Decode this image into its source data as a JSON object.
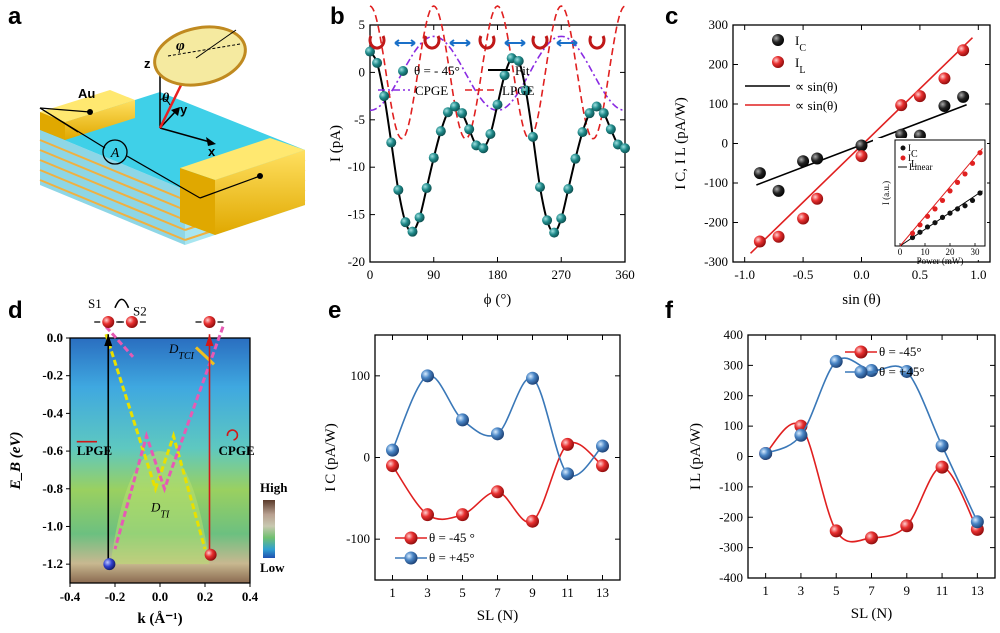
{
  "panels": {
    "a": "a",
    "b": "b",
    "c": "c",
    "d": "d",
    "e": "e",
    "f": "f"
  },
  "colors": {
    "teal": "#1f8a8a",
    "red": "#e02020",
    "blue": "#3a78b8",
    "purple": "#8a2be2",
    "yellow": "#e8e000",
    "magenta": "#e65ab4",
    "gold": "#f0c020",
    "cyan": "#33ccdd"
  },
  "diagram_a": {
    "labels": [
      "Au",
      "φ",
      "θ",
      "z",
      "y",
      "x",
      "A"
    ]
  },
  "chart_b": {
    "type": "line",
    "xlabel": "ϕ (°)",
    "ylabel": "I (pA)",
    "xlim": [
      0,
      360
    ],
    "ylim": [
      -20,
      5
    ],
    "xticks": [
      "0",
      "90",
      "180",
      "270",
      "360"
    ],
    "yticks": [
      "5",
      "0",
      "-5",
      "-10",
      "-15",
      "-20"
    ],
    "legend": {
      "data": "θ = - 45°",
      "fit": "Fit",
      "cpge": "CPGE",
      "lpge": "LPGE"
    },
    "data_phi": [
      0,
      10,
      20,
      30,
      40,
      50,
      60,
      70,
      80,
      90,
      100,
      110,
      120,
      130,
      140,
      150,
      160,
      170,
      180,
      190,
      200,
      210,
      220,
      230,
      240,
      250,
      260,
      270,
      280,
      290,
      300,
      310,
      320,
      330,
      340,
      350,
      360
    ],
    "data_I": [
      2.2,
      1.0,
      -2.5,
      -7.4,
      -12.4,
      -15.8,
      -16.8,
      -15.3,
      -12.2,
      -9.0,
      -6.2,
      -4.2,
      -3.6,
      -4.3,
      -6.0,
      -7.7,
      -8.0,
      -6.5,
      -3.4,
      -0.3,
      1.5,
      1.2,
      -1.9,
      -6.8,
      -12.1,
      -15.6,
      -16.9,
      -15.4,
      -12.3,
      -9.1,
      -6.3,
      -4.3,
      -3.6,
      -4.3,
      -6.0,
      -7.6,
      -8.0
    ]
  },
  "chart_c": {
    "type": "scatter",
    "xlabel": "sin (θ)",
    "ylabel": "I C, I L (pA/W)",
    "xlim": [
      -1.0,
      1.0
    ],
    "ylim": [
      -300,
      300
    ],
    "xticks": [
      "-1.0",
      "-0.5",
      "0.0",
      "0.5",
      "1.0"
    ],
    "yticks": [
      "300",
      "200",
      "100",
      "0",
      "-100",
      "-200",
      "-300"
    ],
    "legend": {
      "ic": "I",
      "ic_sub": "C",
      "il": "I",
      "il_sub": "L",
      "fit1": "∝ sin(θ)",
      "fit2": "∝ sin(θ)"
    },
    "ic_x": [
      -0.87,
      -0.71,
      -0.5,
      -0.38,
      0.0,
      0.34,
      0.5,
      0.71,
      0.87
    ],
    "ic_y": [
      -75,
      -120,
      -45,
      -38,
      -5,
      22,
      20,
      95,
      118
    ],
    "il_x": [
      -0.87,
      -0.71,
      -0.5,
      -0.38,
      0.0,
      0.34,
      0.5,
      0.71,
      0.87
    ],
    "il_y": [
      -248,
      -236,
      -190,
      -140,
      -32,
      97,
      120,
      165,
      236
    ],
    "inset": {
      "xlabel": "Power (mW)",
      "ylabel": "I (a.u.)",
      "xticks": [
        "0",
        "10",
        "20",
        "30"
      ],
      "legend_ic": "I",
      "legend_ic_sub": "C",
      "legend_il": "I",
      "legend_il_sub": "L",
      "legend_linear": "Linear",
      "ic_x": [
        5,
        8,
        11,
        14,
        17,
        20,
        23,
        26,
        29,
        32
      ],
      "ic_y": [
        0.08,
        0.13,
        0.18,
        0.22,
        0.27,
        0.31,
        0.35,
        0.38,
        0.43,
        0.5
      ],
      "il_x": [
        5,
        8,
        11,
        14,
        17,
        20,
        23,
        26,
        29,
        32
      ],
      "il_y": [
        0.12,
        0.2,
        0.28,
        0.35,
        0.43,
        0.52,
        0.6,
        0.68,
        0.78,
        0.88
      ]
    }
  },
  "chart_d": {
    "xlabel": "k (Å⁻¹)",
    "ylabel": "E_B (eV)",
    "xticks": [
      "-0.4",
      "-0.2",
      "0.0",
      "0.2",
      "0.4"
    ],
    "yticks": [
      "0.0",
      "-0.2",
      "-0.4",
      "-0.6",
      "-0.8",
      "-1.0",
      "-1.2"
    ],
    "labels": {
      "s1": "S1",
      "s2": "S2",
      "dtci": "D",
      "dtci_sub": "TCI",
      "dti": "D",
      "dti_sub": "TI",
      "lpge": "LPGE",
      "cpge": "CPGE",
      "high": "High",
      "low": "Low"
    }
  },
  "chart_e": {
    "type": "line",
    "xlabel": "SL (N)",
    "ylabel": "I C (pA/W)",
    "xticks": [
      "1",
      "3",
      "5",
      "7",
      "9",
      "11",
      "13"
    ],
    "yticks": [
      "100",
      "0",
      "-100"
    ],
    "x": [
      1,
      3,
      5,
      7,
      9,
      11,
      13
    ],
    "series": [
      {
        "name": "θ = -45 °",
        "values": [
          -10,
          -70,
          -70,
          -42,
          -78,
          16,
          -10
        ]
      },
      {
        "name": "θ = +45°",
        "values": [
          9,
          100,
          46,
          29,
          97,
          -20,
          14
        ]
      }
    ]
  },
  "chart_f": {
    "type": "line",
    "xlabel": "SL (N)",
    "ylabel": "I L (pA/W)",
    "xticks": [
      "1",
      "3",
      "5",
      "7",
      "9",
      "11",
      "13"
    ],
    "yticks": [
      "400",
      "300",
      "200",
      "100",
      "0",
      "-100",
      "-200",
      "-300",
      "-400"
    ],
    "x": [
      1,
      3,
      5,
      7,
      9,
      11,
      13
    ],
    "series": [
      {
        "name": "θ = -45°",
        "values": [
          10,
          100,
          -245,
          -268,
          -228,
          -35,
          -240
        ]
      },
      {
        "name": "θ = +45°",
        "values": [
          10,
          70,
          313,
          283,
          280,
          35,
          -215
        ]
      }
    ]
  }
}
